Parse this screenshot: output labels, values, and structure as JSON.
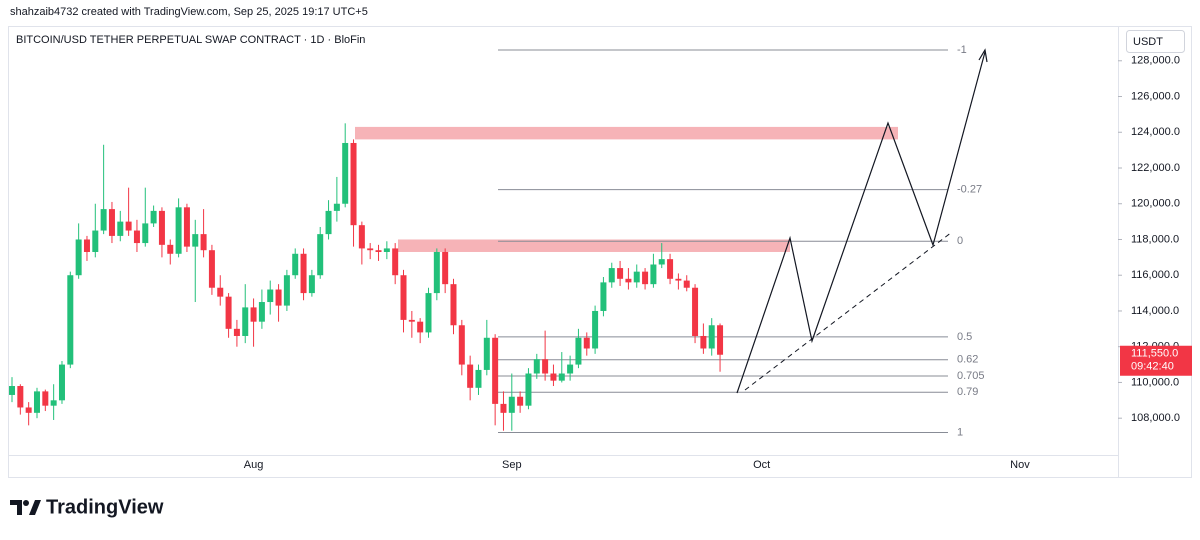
{
  "header": "shahzaib4732 created with TradingView.com, Sep 25, 2025 19:17 UTC+5",
  "footer": {
    "brand": "TradingView"
  },
  "chart_data": {
    "type": "candlestick",
    "title": "BITCOIN/USD TETHER PERPETUAL SWAP CONTRACT · 1D · BloFin",
    "currency": "USDT",
    "categories": [
      null,
      null,
      null,
      null,
      null,
      null,
      null,
      null,
      null,
      null,
      null,
      null,
      null,
      null,
      null,
      null,
      null,
      null,
      null,
      null,
      null,
      null,
      null,
      null,
      null,
      null,
      null,
      null,
      null,
      "Aug",
      null,
      null,
      null,
      null,
      null,
      null,
      null,
      null,
      null,
      null,
      null,
      null,
      null,
      null,
      null,
      null,
      null,
      null,
      null,
      null,
      null,
      null,
      null,
      null,
      null,
      null,
      null,
      null,
      null,
      null,
      "Sep",
      null,
      null,
      null,
      null,
      null,
      null,
      null,
      null,
      null,
      null,
      null,
      null,
      null,
      null,
      null,
      null,
      null,
      null,
      null,
      null,
      null,
      null,
      null,
      null,
      null,
      null,
      null,
      null,
      null,
      "Oct",
      null,
      null,
      null,
      null,
      null,
      null,
      null,
      null,
      null,
      null,
      null,
      null,
      null,
      null,
      null,
      null,
      null,
      null,
      null,
      null,
      null,
      null,
      null,
      null,
      null,
      null,
      null,
      null,
      null,
      null,
      "Nov",
      null,
      null,
      null,
      null,
      null,
      null,
      null,
      null
    ],
    "open": [
      109300,
      109800,
      108600,
      108300,
      109500,
      108700,
      109000,
      111000,
      116000,
      118000,
      117300,
      118500,
      119700,
      118200,
      119000,
      118500,
      117800,
      118900,
      119600,
      117700,
      117200,
      119800,
      117600,
      118300,
      117400,
      115300,
      114800,
      113000,
      112600,
      114200,
      113400,
      114500,
      115200,
      114300,
      116000,
      117200,
      115000,
      116000,
      118300,
      119600,
      120000,
      123400,
      118800,
      117500,
      117400,
      117300,
      117500,
      116000,
      113500,
      113400,
      112800,
      115000,
      117300,
      115500,
      113200,
      111000,
      109700,
      110700,
      112500,
      108800,
      108300,
      109200,
      108700,
      110500,
      111300,
      110500,
      110100,
      110500,
      111000,
      112500,
      111900,
      114000,
      115600,
      116400,
      115800,
      115600,
      116200,
      115500,
      116600,
      116900,
      115800,
      115700,
      115300,
      112600,
      111900,
      113200,
      null,
      null,
      null,
      null,
      null,
      null,
      null,
      null,
      null,
      null,
      null,
      null,
      null,
      null,
      null,
      null,
      null,
      null,
      null,
      null,
      null,
      null,
      null,
      null,
      null,
      null,
      null,
      null,
      null,
      null,
      null,
      null,
      null,
      null,
      null,
      null,
      null,
      null,
      null,
      null,
      null,
      null,
      null,
      null
    ],
    "high": [
      110300,
      109900,
      108900,
      109700,
      109600,
      109900,
      111200,
      116200,
      118900,
      118200,
      120000,
      123300,
      120100,
      119600,
      120900,
      119100,
      120900,
      119900,
      119800,
      118000,
      120300,
      120000,
      119100,
      119700,
      117700,
      116000,
      115000,
      113500,
      115500,
      114700,
      115200,
      115700,
      115500,
      116300,
      117500,
      117500,
      116300,
      118700,
      120200,
      121500,
      124500,
      123600,
      119000,
      117800,
      117700,
      117900,
      117800,
      116300,
      114000,
      113600,
      115300,
      117500,
      117500,
      115800,
      113500,
      111500,
      111000,
      113500,
      112700,
      109500,
      110500,
      109500,
      110800,
      111600,
      112900,
      111000,
      111700,
      111500,
      113000,
      112800,
      114300,
      115900,
      116700,
      116800,
      116400,
      116600,
      116400,
      117200,
      117800,
      117200,
      116100,
      116000,
      115500,
      113300,
      113600,
      113300,
      null,
      null,
      null,
      null,
      null,
      null,
      null,
      null,
      null,
      null,
      null,
      null,
      null,
      null,
      null,
      null,
      null,
      null,
      null,
      null,
      null,
      null,
      null,
      null,
      null,
      null,
      null,
      null,
      null,
      null,
      null,
      null,
      null,
      null,
      null,
      null,
      null,
      null,
      null,
      null,
      null,
      null,
      null,
      null
    ],
    "low": [
      108900,
      108200,
      107600,
      108000,
      108400,
      107900,
      108800,
      110800,
      115800,
      116800,
      117000,
      118300,
      117800,
      117900,
      118200,
      117300,
      117600,
      118700,
      117000,
      116600,
      117000,
      117300,
      114500,
      117000,
      114900,
      114300,
      112500,
      112000,
      112200,
      112000,
      113000,
      113800,
      113400,
      114000,
      115800,
      114600,
      114800,
      115800,
      118000,
      119000,
      119800,
      117600,
      116600,
      116900,
      116800,
      116900,
      115500,
      112800,
      112500,
      112200,
      112500,
      114600,
      115000,
      112700,
      110400,
      109000,
      109300,
      110400,
      107600,
      107300,
      107300,
      108300,
      108500,
      110200,
      110100,
      109800,
      110000,
      110100,
      110800,
      111500,
      111600,
      113700,
      115300,
      115400,
      115200,
      115300,
      115200,
      115300,
      116400,
      115500,
      115200,
      115100,
      112200,
      111600,
      111500,
      110600,
      null,
      null,
      null,
      null,
      null,
      null,
      null,
      null,
      null,
      null,
      null,
      null,
      null,
      null,
      null,
      null,
      null,
      null,
      null,
      null,
      null,
      null,
      null,
      null,
      null,
      null,
      null,
      null,
      null,
      null,
      null,
      null,
      null,
      null,
      null,
      null,
      null,
      null,
      null,
      null,
      null,
      null,
      null,
      null
    ],
    "close": [
      109800,
      108600,
      108300,
      109500,
      108700,
      109000,
      111000,
      116000,
      118000,
      117300,
      118500,
      119700,
      118200,
      119000,
      118500,
      117800,
      118900,
      119600,
      117700,
      117200,
      119800,
      117600,
      118300,
      117400,
      115300,
      114800,
      113000,
      112600,
      114200,
      113400,
      114500,
      115200,
      114300,
      116000,
      117200,
      115000,
      116000,
      118300,
      119600,
      120000,
      123400,
      118800,
      117500,
      117400,
      117300,
      117500,
      116000,
      113500,
      113400,
      112800,
      115000,
      117300,
      115500,
      113200,
      111000,
      109700,
      110700,
      112500,
      108800,
      108300,
      109200,
      108700,
      110500,
      111300,
      110500,
      110100,
      110500,
      111000,
      112500,
      111900,
      114000,
      115600,
      116400,
      115800,
      115600,
      116200,
      115500,
      116600,
      116900,
      115800,
      115700,
      115300,
      112600,
      111900,
      113200,
      111550,
      null,
      null,
      null,
      null,
      null,
      null,
      null,
      null,
      null,
      null,
      null,
      null,
      null,
      null,
      null,
      null,
      null,
      null,
      null,
      null,
      null,
      null,
      null,
      null,
      null,
      null,
      null,
      null,
      null,
      null,
      null,
      null,
      null,
      null,
      null,
      null,
      null,
      null,
      null,
      null,
      null,
      null,
      null,
      null
    ],
    "up_color": "#22c07a",
    "down_color": "#f23645",
    "ylim": [
      105940,
      129890
    ],
    "yticks": [
      {
        "value": 108000,
        "label": "108,000.0"
      },
      {
        "value": 110000,
        "label": "110,000.0"
      },
      {
        "value": 112000,
        "label": "112,000.0"
      },
      {
        "value": 114000,
        "label": "114,000.0"
      },
      {
        "value": 116000,
        "label": "116,000.0"
      },
      {
        "value": 118000,
        "label": "118,000.0"
      },
      {
        "value": 120000,
        "label": "120,000.0"
      },
      {
        "value": 122000,
        "label": "122,000.0"
      },
      {
        "value": 124000,
        "label": "124,000.0"
      },
      {
        "value": 126000,
        "label": "126,000.0"
      },
      {
        "value": 128000,
        "label": "128,000.0"
      }
    ],
    "grid": false,
    "last_price": {
      "value": 111550,
      "label": "111,550.0"
    },
    "countdown": "09:42:40",
    "fib_levels": [
      {
        "value": 128600,
        "label": "-1"
      },
      {
        "value": 120790,
        "label": "-0.27"
      },
      {
        "value": 117900,
        "label": "0"
      },
      {
        "value": 112550,
        "label": "0.5"
      },
      {
        "value": 111270,
        "label": "0.62"
      },
      {
        "value": 110360,
        "label": "0.705"
      },
      {
        "value": 109450,
        "label": "0.79"
      },
      {
        "value": 107200,
        "label": "1"
      }
    ],
    "zones": [
      {
        "high": 124300,
        "low": 123600
      },
      {
        "high": 118000,
        "low": 117300
      }
    ],
    "zone_color": "#f4a6aa"
  }
}
